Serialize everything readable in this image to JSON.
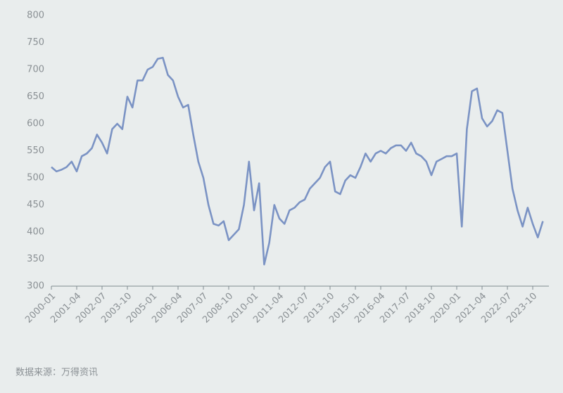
{
  "chart_data": {
    "type": "line",
    "categories": [
      "2000-01",
      null,
      null,
      null,
      null,
      "2001-04",
      null,
      null,
      null,
      null,
      "2002-07",
      null,
      null,
      null,
      null,
      "2003-10",
      null,
      null,
      null,
      null,
      "2005-01",
      null,
      null,
      null,
      null,
      "2006-04",
      null,
      null,
      null,
      null,
      "2007-07",
      null,
      null,
      null,
      null,
      "2008-10",
      null,
      null,
      null,
      null,
      "2010-01",
      null,
      null,
      null,
      null,
      "2011-04",
      null,
      null,
      null,
      null,
      "2012-07",
      null,
      null,
      null,
      null,
      "2013-10",
      null,
      null,
      null,
      null,
      "2015-01",
      null,
      null,
      null,
      null,
      "2016-04",
      null,
      null,
      null,
      null,
      "2017-07",
      null,
      null,
      null,
      null,
      "2018-10",
      null,
      null,
      null,
      null,
      "2020-01",
      null,
      null,
      null,
      null,
      "2021-04",
      null,
      null,
      null,
      null,
      "2022-07",
      null,
      null,
      null,
      null,
      "2023-10",
      null,
      null
    ],
    "values": [
      520,
      512,
      515,
      520,
      530,
      512,
      540,
      545,
      555,
      580,
      565,
      545,
      590,
      600,
      590,
      650,
      630,
      680,
      680,
      700,
      705,
      720,
      722,
      690,
      680,
      650,
      630,
      635,
      580,
      530,
      500,
      450,
      415,
      412,
      420,
      385,
      395,
      405,
      450,
      530,
      440,
      490,
      340,
      380,
      450,
      425,
      415,
      440,
      445,
      455,
      460,
      480,
      490,
      500,
      520,
      530,
      475,
      470,
      495,
      505,
      500,
      520,
      545,
      530,
      545,
      550,
      545,
      555,
      560,
      560,
      550,
      565,
      545,
      540,
      530,
      505,
      530,
      535,
      540,
      540,
      545,
      410,
      590,
      660,
      665,
      610,
      595,
      605,
      625,
      620,
      550,
      480,
      440,
      410,
      445,
      415,
      390,
      420
    ],
    "color": "#7b93c4",
    "ylim": [
      300,
      800
    ],
    "yticks": [
      300,
      350,
      400,
      450,
      500,
      550,
      600,
      650,
      700,
      750,
      800
    ],
    "grid": false,
    "source": "数据来源：万得资讯"
  }
}
